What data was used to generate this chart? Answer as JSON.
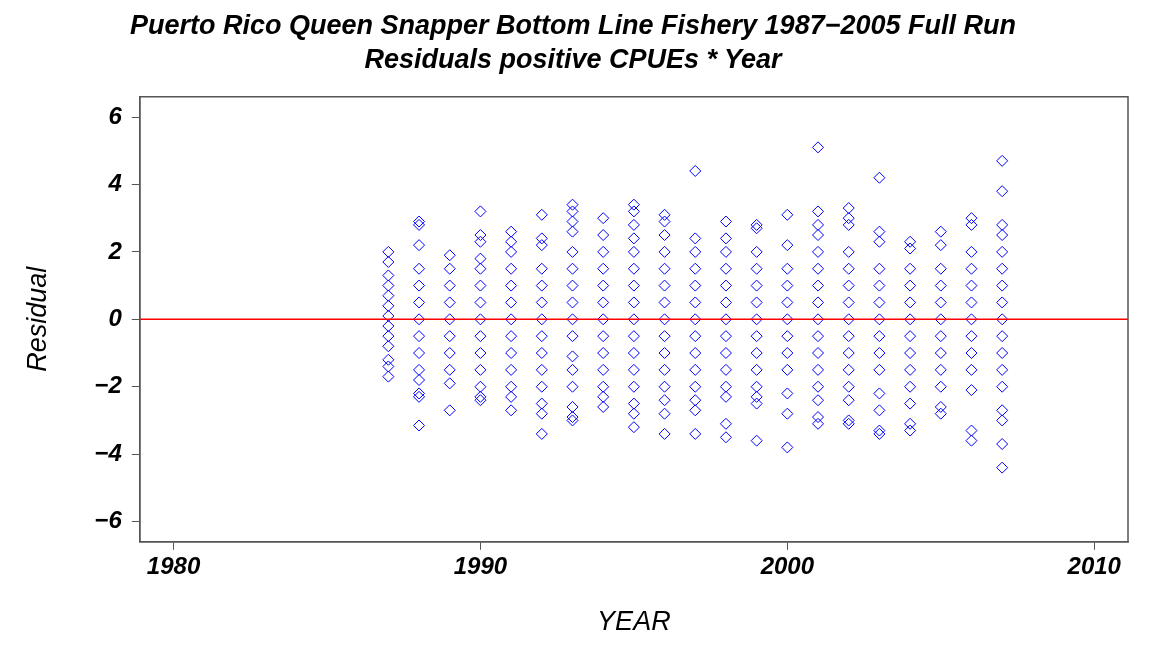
{
  "chart_data": {
    "type": "scatter",
    "title": "Puerto Rico Queen Snapper Bottom Line Fishery 1987−2005 Full Run",
    "subtitle": "Residuals positive CPUEs * Year",
    "xlabel": "YEAR",
    "ylabel": "Residual",
    "xlim": [
      1978.9,
      2011.1
    ],
    "xticks": [
      1980,
      1990,
      2000,
      2010
    ],
    "ylim": [
      -6.6,
      6.6
    ],
    "yticks": [
      -6,
      -4,
      -2,
      0,
      2,
      4,
      6
    ],
    "grid": false,
    "legend": false,
    "marker": "diamond",
    "ref_lines": [
      {
        "axis": "y",
        "value": 0,
        "color": "#ff0000"
      }
    ],
    "series": [
      {
        "color": "#0000ff",
        "x": [
          1987,
          1987,
          1987,
          1987,
          1987,
          1987,
          1987,
          1987,
          1987,
          1987,
          1987,
          1987,
          1987
        ],
        "values": [
          2.0,
          1.7,
          1.3,
          1.0,
          0.7,
          0.4,
          0.1,
          -0.2,
          -0.5,
          -0.8,
          -1.2,
          -1.4,
          -1.7
        ]
      },
      {
        "color": "#0000ff",
        "x": [
          1988,
          1988,
          1988,
          1988,
          1988,
          1988,
          1988,
          1988,
          1988,
          1988,
          1988,
          1988,
          1988,
          1988
        ],
        "values": [
          2.9,
          2.8,
          2.2,
          1.5,
          1,
          0.5,
          0,
          -0.5,
          -1,
          -1.5,
          -1.8,
          -2.2,
          -2.3,
          -3.15
        ]
      },
      {
        "color": "#0000ff",
        "x": [
          1989,
          1989,
          1989,
          1989,
          1989,
          1989,
          1989,
          1989,
          1989,
          1989
        ],
        "values": [
          1.9,
          1.5,
          1,
          0.5,
          0,
          -0.5,
          -1,
          -1.5,
          -1.9,
          -2.7
        ]
      },
      {
        "color": "#0000ff",
        "x": [
          1990,
          1990,
          1990,
          1990,
          1990,
          1990,
          1990,
          1990,
          1990,
          1990,
          1990,
          1990,
          1990,
          1990
        ],
        "values": [
          3.2,
          2.5,
          2.3,
          1.8,
          1.5,
          1,
          0.5,
          0,
          -0.5,
          -1,
          -1.5,
          -2.0,
          -2.3,
          -2.4
        ]
      },
      {
        "color": "#0000ff",
        "x": [
          1991,
          1991,
          1991,
          1991,
          1991,
          1991,
          1991,
          1991,
          1991,
          1991,
          1991,
          1991,
          1991
        ],
        "values": [
          2.6,
          2.3,
          2,
          1.5,
          1,
          0.5,
          0,
          -0.5,
          -1,
          -1.5,
          -2,
          -2.3,
          -2.7
        ]
      },
      {
        "color": "#0000ff",
        "x": [
          1992,
          1992,
          1992,
          1992,
          1992,
          1992,
          1992,
          1992,
          1992,
          1992,
          1992,
          1992,
          1992,
          1992
        ],
        "values": [
          3.1,
          2.4,
          2.2,
          1.5,
          1,
          0.5,
          0,
          -0.5,
          -1,
          -1.5,
          -2,
          -2.5,
          -2.8,
          -3.4
        ]
      },
      {
        "color": "#0000ff",
        "x": [
          1993,
          1993,
          1993,
          1993,
          1993,
          1993,
          1993,
          1993,
          1993,
          1993,
          1993,
          1993,
          1993,
          1993,
          1993,
          1993
        ],
        "values": [
          3.4,
          3.2,
          2.9,
          2.6,
          2,
          1.5,
          1,
          0.5,
          0,
          -0.5,
          -1.1,
          -1.5,
          -2,
          -2.6,
          -2.9,
          -3.0
        ]
      },
      {
        "color": "#0000ff",
        "x": [
          1994,
          1994,
          1994,
          1994,
          1994,
          1994,
          1994,
          1994,
          1994,
          1994,
          1994,
          1994,
          1994
        ],
        "values": [
          3.0,
          2.5,
          2,
          1.5,
          1,
          0.5,
          0,
          -0.5,
          -1,
          -1.5,
          -2,
          -2.3,
          -2.6
        ]
      },
      {
        "color": "#0000ff",
        "x": [
          1995,
          1995,
          1995,
          1995,
          1995,
          1995,
          1995,
          1995,
          1995,
          1995,
          1995,
          1995,
          1995,
          1995,
          1995,
          1995
        ],
        "values": [
          3.4,
          3.2,
          2.8,
          2.4,
          2,
          1.5,
          1,
          0.5,
          0,
          -0.5,
          -1,
          -1.5,
          -2,
          -2.5,
          -2.8,
          -3.2
        ]
      },
      {
        "color": "#0000ff",
        "x": [
          1996,
          1996,
          1996,
          1996,
          1996,
          1996,
          1996,
          1996,
          1996,
          1996,
          1996,
          1996,
          1996,
          1996,
          1996
        ],
        "values": [
          3.1,
          2.9,
          2.5,
          2,
          1.5,
          1,
          0.5,
          0,
          -0.5,
          -1,
          -1.5,
          -2,
          -2.4,
          -2.8,
          -3.4
        ]
      },
      {
        "color": "#0000ff",
        "x": [
          1997,
          1997,
          1997,
          1997,
          1997,
          1997,
          1997,
          1997,
          1997,
          1997,
          1997,
          1997,
          1997,
          1997
        ],
        "values": [
          4.4,
          2.4,
          2,
          1.5,
          1,
          0.5,
          0,
          -0.5,
          -1,
          -1.5,
          -2,
          -2.4,
          -2.7,
          -3.4
        ]
      },
      {
        "color": "#0000ff",
        "x": [
          1998,
          1998,
          1998,
          1998,
          1998,
          1998,
          1998,
          1998,
          1998,
          1998,
          1998,
          1998,
          1998,
          1998
        ],
        "values": [
          2.9,
          2.4,
          2,
          1.5,
          1,
          0.5,
          0,
          -0.5,
          -1,
          -1.5,
          -2,
          -2.3,
          -3.1,
          -3.5
        ]
      },
      {
        "color": "#0000ff",
        "x": [
          1999,
          1999,
          1999,
          1999,
          1999,
          1999,
          1999,
          1999,
          1999,
          1999,
          1999,
          1999,
          1999,
          1999
        ],
        "values": [
          2.8,
          2.7,
          2,
          1.5,
          1,
          0.5,
          0,
          -0.5,
          -1,
          -1.5,
          -2,
          -2.3,
          -2.5,
          -3.6
        ]
      },
      {
        "color": "#0000ff",
        "x": [
          2000,
          2000,
          2000,
          2000,
          2000,
          2000,
          2000,
          2000,
          2000,
          2000,
          2000,
          2000
        ],
        "values": [
          3.1,
          2.2,
          1.5,
          1,
          0.5,
          0,
          -0.5,
          -1,
          -1.5,
          -2.2,
          -2.8,
          -3.8
        ]
      },
      {
        "color": "#0000ff",
        "x": [
          2001,
          2001,
          2001,
          2001,
          2001,
          2001,
          2001,
          2001,
          2001,
          2001,
          2001,
          2001,
          2001,
          2001,
          2001,
          2001
        ],
        "values": [
          5.1,
          3.2,
          2.8,
          2.5,
          2,
          1.5,
          1,
          0.5,
          0,
          -0.5,
          -1,
          -1.5,
          -2,
          -2.4,
          -2.9,
          -3.1
        ]
      },
      {
        "color": "#0000ff",
        "x": [
          2002,
          2002,
          2002,
          2002,
          2002,
          2002,
          2002,
          2002,
          2002,
          2002,
          2002,
          2002,
          2002,
          2002,
          2002
        ],
        "values": [
          3.3,
          3.0,
          2.8,
          2,
          1.5,
          1,
          0.5,
          0,
          -0.5,
          -1,
          -1.5,
          -2,
          -2.4,
          -3.0,
          -3.1
        ]
      },
      {
        "color": "#0000ff",
        "x": [
          2003,
          2003,
          2003,
          2003,
          2003,
          2003,
          2003,
          2003,
          2003,
          2003,
          2003,
          2003,
          2003,
          2003
        ],
        "values": [
          4.2,
          2.6,
          2.3,
          1.5,
          1,
          0.5,
          0,
          -0.5,
          -1,
          -1.5,
          -2.2,
          -2.7,
          -3.3,
          -3.4
        ]
      },
      {
        "color": "#0000ff",
        "x": [
          2004,
          2004,
          2004,
          2004,
          2004,
          2004,
          2004,
          2004,
          2004,
          2004,
          2004,
          2004,
          2004
        ],
        "values": [
          2.3,
          2.1,
          1.5,
          1,
          0.5,
          0,
          -0.5,
          -1,
          -1.5,
          -2,
          -2.5,
          -3.1,
          -3.3
        ]
      },
      {
        "color": "#0000ff",
        "x": [
          2005,
          2005,
          2005,
          2005,
          2005,
          2005,
          2005,
          2005,
          2005,
          2005,
          2005,
          2005
        ],
        "values": [
          2.6,
          2.2,
          1.5,
          1,
          0.5,
          0,
          -0.5,
          -1,
          -1.5,
          -2,
          -2.6,
          -2.8
        ]
      },
      {
        "color": "#0000ff",
        "x": [
          2006,
          2006,
          2006,
          2006,
          2006,
          2006,
          2006,
          2006,
          2006,
          2006,
          2006,
          2006,
          2006
        ],
        "values": [
          3.0,
          2.8,
          2.0,
          1.5,
          1,
          0.5,
          0,
          -0.5,
          -1,
          -1.5,
          -2.1,
          -3.3,
          -3.6
        ]
      },
      {
        "color": "#0000ff",
        "x": [
          2007,
          2007,
          2007,
          2007,
          2007,
          2007,
          2007,
          2007,
          2007,
          2007,
          2007,
          2007,
          2007,
          2007,
          2007,
          2007,
          2007
        ],
        "values": [
          4.7,
          3.8,
          2.8,
          2.5,
          2,
          1.5,
          1,
          0.5,
          0,
          -0.5,
          -1,
          -1.5,
          -2,
          -2.7,
          -3.0,
          -3.7,
          -4.4
        ]
      }
    ]
  }
}
